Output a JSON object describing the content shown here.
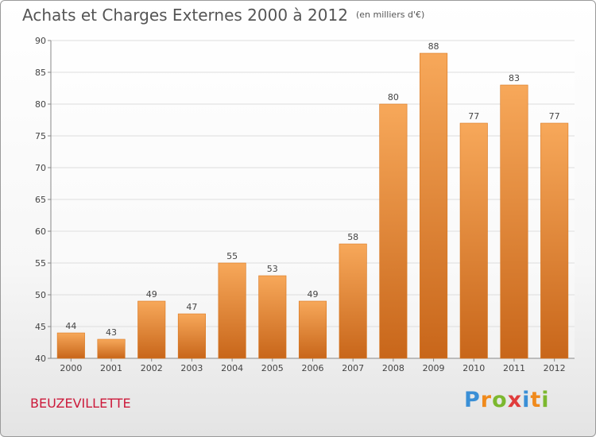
{
  "chart_data": {
    "type": "bar",
    "title": "Achats et Charges Externes 2000 à 2012",
    "subtitle": "(en milliers d'€)",
    "categories": [
      "2000",
      "2001",
      "2002",
      "2003",
      "2004",
      "2005",
      "2006",
      "2007",
      "2008",
      "2009",
      "2010",
      "2011",
      "2012"
    ],
    "values": [
      44,
      43,
      49,
      47,
      55,
      53,
      49,
      58,
      80,
      88,
      77,
      83,
      77
    ],
    "ylim": [
      40,
      90
    ],
    "yticks": [
      40,
      45,
      50,
      55,
      60,
      65,
      70,
      75,
      80,
      85,
      90
    ],
    "grid": true,
    "colors": {
      "bar_top": "#f7a85a",
      "bar_bottom": "#c8661a",
      "bar_edge": "#d9771f"
    }
  },
  "footer": {
    "place": "BEUZEVILLETTE",
    "logo_text": [
      "P",
      "r",
      "o",
      "x",
      "i",
      "t",
      "i"
    ],
    "logo_colors": [
      "#3a8fd6",
      "#f08a1c",
      "#7cb82f",
      "#e03c3c",
      "#3a8fd6",
      "#f08a1c",
      "#7cb82f"
    ]
  }
}
